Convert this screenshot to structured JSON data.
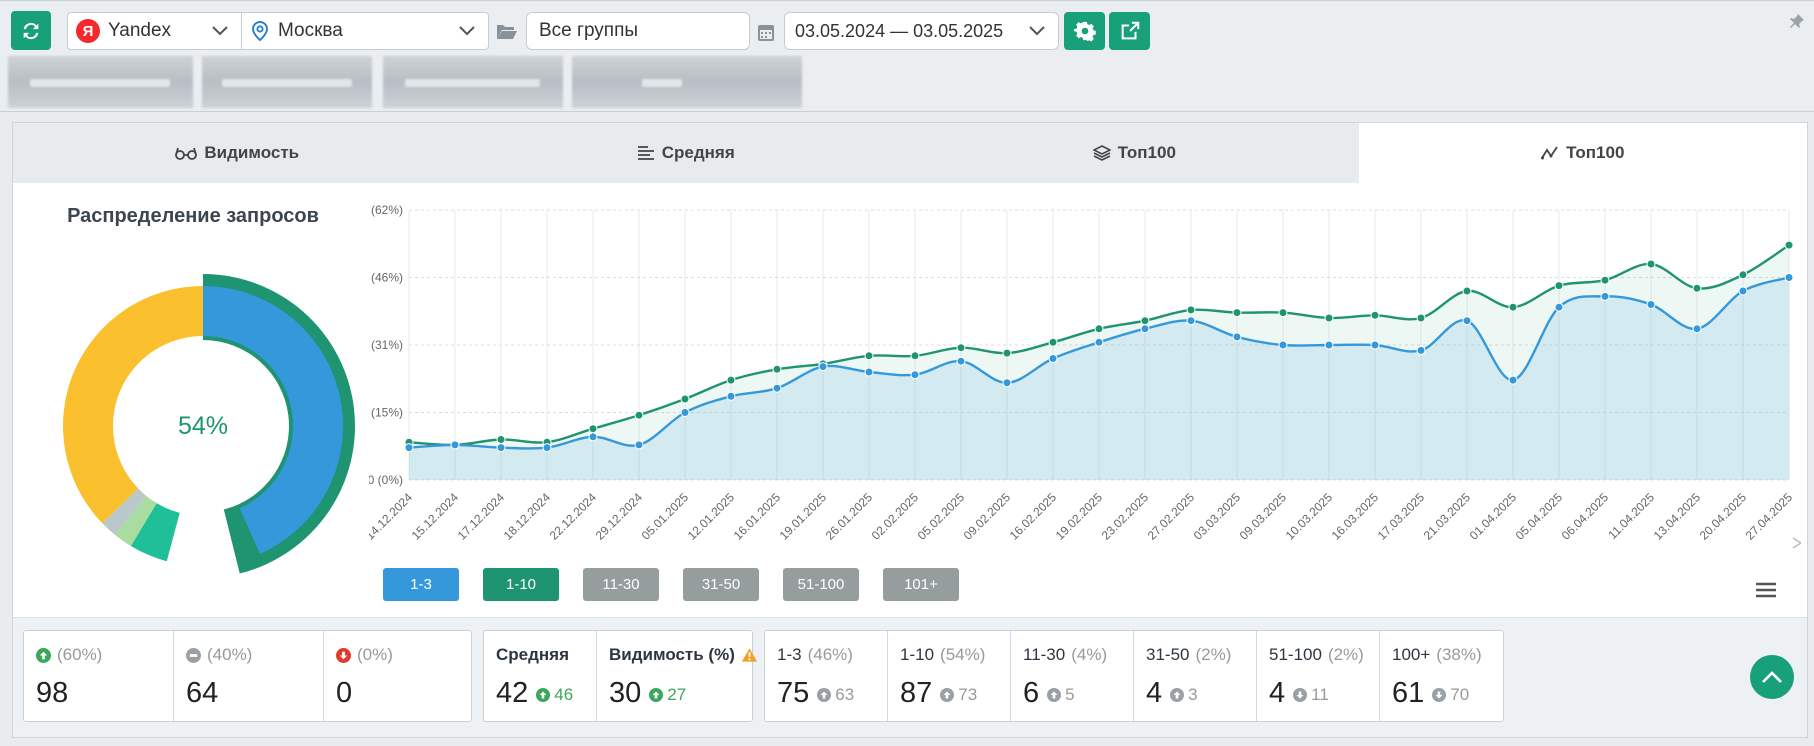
{
  "toolbar": {
    "search_engine": "Yandex",
    "engine_logo": "Я",
    "region": "Москва",
    "group": "Все группы",
    "date_range": "03.05.2024 — 03.05.2025"
  },
  "tabs": [
    {
      "label": "Видимость",
      "icon": "glasses-icon"
    },
    {
      "label": "Средняя",
      "icon": "stripes-icon"
    },
    {
      "label": "Топ100",
      "icon": "layers-icon"
    },
    {
      "label": "Топ100",
      "icon": "line-chart-icon",
      "active": true
    }
  ],
  "donut": {
    "title": "Распределение запросов",
    "center_label": "54%",
    "colors": {
      "top3": "#3498db",
      "top10": "#1e9470",
      "top30": "#1fbf98",
      "top50": "#a8dca0",
      "top100": "#b9c8cb",
      "over100": "#fbc02d"
    }
  },
  "chart_data": {
    "type": "area",
    "y_ticks": [
      "100 (62%)",
      "75 (46%)",
      "50 (31%)",
      "25 (15%)",
      "0 (0%)"
    ],
    "ylim": [
      0,
      100
    ],
    "x": [
      "14.12.2024",
      "15.12.2024",
      "17.12.2024",
      "18.12.2024",
      "22.12.2024",
      "29.12.2024",
      "05.01.2025",
      "12.01.2025",
      "16.01.2025",
      "19.01.2025",
      "26.01.2025",
      "02.02.2025",
      "05.02.2025",
      "09.02.2025",
      "16.02.2025",
      "19.02.2025",
      "23.02.2025",
      "27.02.2025",
      "03.03.2025",
      "09.03.2025",
      "10.03.2025",
      "16.03.2025",
      "17.03.2025",
      "21.03.2025",
      "01.04.2025",
      "05.04.2025",
      "06.04.2025",
      "11.04.2025",
      "13.04.2025",
      "20.04.2025",
      "27.04.2025"
    ],
    "series": [
      {
        "name": "1-3",
        "color": "#3498db",
        "values": [
          12,
          13,
          12,
          12,
          16,
          13,
          25,
          31,
          34,
          42,
          40,
          39,
          44,
          36,
          45,
          51,
          56,
          59,
          53,
          50,
          50,
          50,
          48,
          59,
          37,
          64,
          68,
          65,
          56,
          70,
          75
        ]
      },
      {
        "name": "1-10",
        "color": "#1e9470",
        "values": [
          14,
          13,
          15,
          14,
          19,
          24,
          30,
          37,
          41,
          43,
          46,
          46,
          49,
          47,
          51,
          56,
          59,
          63,
          62,
          62,
          60,
          61,
          60,
          70,
          64,
          72,
          74,
          80,
          71,
          76,
          87
        ]
      }
    ],
    "legend": [
      {
        "label": "1-3",
        "color": "#3498db"
      },
      {
        "label": "1-10",
        "color": "#1e9470"
      },
      {
        "label": "11-30",
        "color": "#959d9d"
      },
      {
        "label": "31-50",
        "color": "#959d9d"
      },
      {
        "label": "51-100",
        "color": "#959d9d"
      },
      {
        "label": "101+",
        "color": "#959d9d"
      }
    ]
  },
  "stats": {
    "movement": [
      {
        "pct": "(60%)",
        "value": "98",
        "icon": "arrow-up-circle-icon"
      },
      {
        "pct": "(40%)",
        "value": "64",
        "icon": "minus-circle-icon"
      },
      {
        "pct": "(0%)",
        "value": "0",
        "icon": "arrow-down-circle-icon"
      }
    ],
    "average": {
      "label": "Средняя",
      "value": "42",
      "delta": "46"
    },
    "visibility": {
      "label": "Видимость (%)",
      "value": "30",
      "delta": "27"
    },
    "buckets": [
      {
        "label": "1-3",
        "pct": "(46%)",
        "value": "75",
        "delta": "63",
        "dir": "up"
      },
      {
        "label": "1-10",
        "pct": "(54%)",
        "value": "87",
        "delta": "73",
        "dir": "up"
      },
      {
        "label": "11-30",
        "pct": "(4%)",
        "value": "6",
        "delta": "5",
        "dir": "up"
      },
      {
        "label": "31-50",
        "pct": "(2%)",
        "value": "4",
        "delta": "3",
        "dir": "up"
      },
      {
        "label": "51-100",
        "pct": "(2%)",
        "value": "4",
        "delta": "11",
        "dir": "down"
      },
      {
        "label": "100+",
        "pct": "(38%)",
        "value": "61",
        "delta": "70",
        "dir": "down"
      }
    ]
  }
}
